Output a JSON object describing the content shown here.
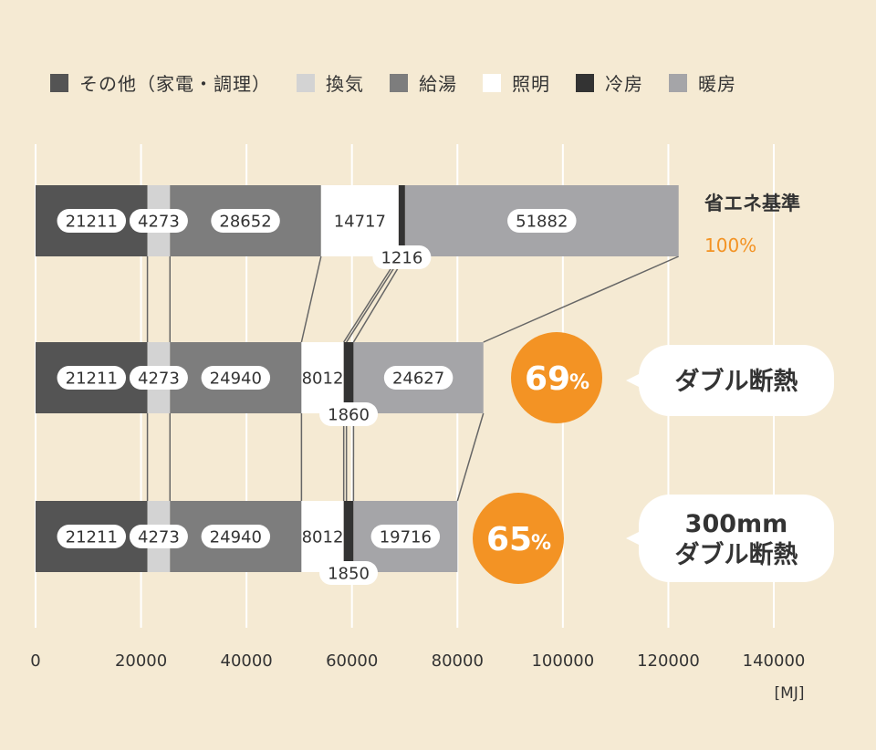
{
  "colors": {
    "background": "#f5ead3",
    "accent": "#f39324",
    "grid": "#ffffff",
    "connector": "#666666"
  },
  "chart_data": {
    "type": "bar",
    "orientation": "horizontal",
    "stacked": true,
    "unit": "[MJ]",
    "xlim": [
      0,
      140000
    ],
    "x_ticks": [
      "0",
      "20000",
      "40000",
      "60000",
      "80000",
      "100000",
      "120000",
      "140000"
    ],
    "grid": true,
    "legend_position": "top",
    "series": [
      {
        "name": "その他（家電・調理）",
        "color": "#545454"
      },
      {
        "name": "換気",
        "color": "#d3d3d3"
      },
      {
        "name": "給湯",
        "color": "#7d7d7d"
      },
      {
        "name": "照明",
        "color": "#ffffff"
      },
      {
        "name": "冷房",
        "color": "#333333"
      },
      {
        "name": "暖房",
        "color": "#a5a5a8"
      }
    ],
    "bars": [
      {
        "values": [
          21211,
          4273,
          28652,
          14717,
          1216,
          51882
        ],
        "labels": [
          "21211",
          "4273",
          "28652",
          "14717",
          "1216",
          "51882"
        ],
        "name": "省エネ基準",
        "percent": "100%"
      },
      {
        "values": [
          21211,
          4273,
          24940,
          8012,
          1860,
          24627
        ],
        "labels": [
          "21211",
          "4273",
          "24940",
          "8012",
          "1860",
          "24627"
        ],
        "percent_number": "69",
        "percent_sign": "%",
        "callout": [
          "ダブル断熱"
        ]
      },
      {
        "values": [
          21211,
          4273,
          24940,
          8012,
          1850,
          19716
        ],
        "labels": [
          "21211",
          "4273",
          "24940",
          "8012",
          "1850",
          "19716"
        ],
        "percent_number": "65",
        "percent_sign": "%",
        "callout": [
          "300mm",
          "ダブル断熱"
        ]
      }
    ]
  }
}
